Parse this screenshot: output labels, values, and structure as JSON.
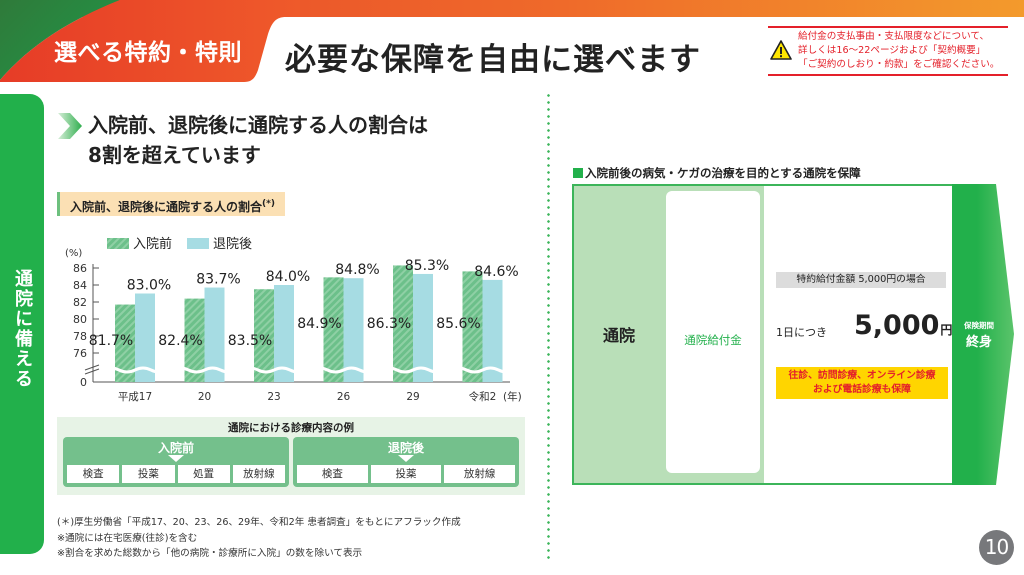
{
  "header": {
    "tab_title": "選べる特約・特則",
    "main_title": "必要な保障を自由に選べます",
    "notice": {
      "icon": "warning-icon",
      "lines": [
        "給付金の支払事由・支払限度などについて、",
        "詳しくは16～22ページおよび「契約概要」",
        "「ご契約のしおり・約款」をご確認ください。"
      ]
    }
  },
  "side_tab": {
    "label": "通院に備える"
  },
  "left": {
    "lead_icon": "chevron-right-icon",
    "lead_lines": [
      "入院前、退院後に通院する人の割合は",
      "8割を超えています"
    ],
    "chart_label": "入院前、退院後に通院する人の割合",
    "chart_label_mark": "(*)",
    "exam": {
      "title": "通院における診療内容の例",
      "groups": [
        {
          "title": "入院前",
          "items": [
            "検査",
            "投薬",
            "処置",
            "放射線"
          ]
        },
        {
          "title": "退院後",
          "items": [
            "検査",
            "投薬",
            "放射線"
          ]
        }
      ]
    },
    "notes": [
      "(＊)厚生労働省「平成17、20、23、26、29年、令和2年 患者調査」をもとにアフラック作成",
      "※通院には在宅医療(往診)を含む",
      "※割合を求めた総数から「他の病院・診療所に入院」の数を除いて表示"
    ]
  },
  "chart_data": {
    "type": "bar",
    "title": "入院前、退院後に通院する人の割合",
    "ylabel": "(%)",
    "xlabel": "(年)",
    "categories": [
      "平成17",
      "20",
      "23",
      "26",
      "29",
      "令和2"
    ],
    "series": [
      {
        "name": "入院前",
        "values": [
          81.7,
          82.4,
          83.5,
          84.9,
          86.3,
          85.6
        ],
        "color": "#6cc08a",
        "labels": [
          "81.7%",
          "82.4%",
          "83.5%",
          "84.9%",
          "86.3%",
          "85.6%"
        ]
      },
      {
        "name": "退院後",
        "values": [
          83.0,
          83.7,
          84.0,
          84.8,
          85.3,
          84.6
        ],
        "color": "#a6dce3",
        "labels": [
          "83.0%",
          "83.7%",
          "84.0%",
          "84.8%",
          "85.3%",
          "84.6%"
        ]
      }
    ],
    "yticks": [
      "0",
      "76",
      "78",
      "80",
      "82",
      "84",
      "86"
    ],
    "ylim": [
      75,
      86.5
    ],
    "axis_break": true,
    "legend": "top-left",
    "grid": false
  },
  "right": {
    "heading": "入院前後の病気・ケガの治療を目的とする通院を保障",
    "category": "通院",
    "benefit": "通院給付金",
    "case_label": "特約給付金額 5,000円の場合",
    "per_day": "1日につき",
    "amount": "5,000",
    "amount_unit": "円",
    "coverage_lines": [
      "往診、訪問診療、オンライン診療",
      "および電話診療も保障"
    ],
    "period_label": "保険期間",
    "period_value": "終身"
  },
  "page_number": "10",
  "colors": {
    "green": "#22b04b",
    "orange": "#ef5a2a",
    "red": "#e4202a",
    "yellow": "#ffd500"
  }
}
